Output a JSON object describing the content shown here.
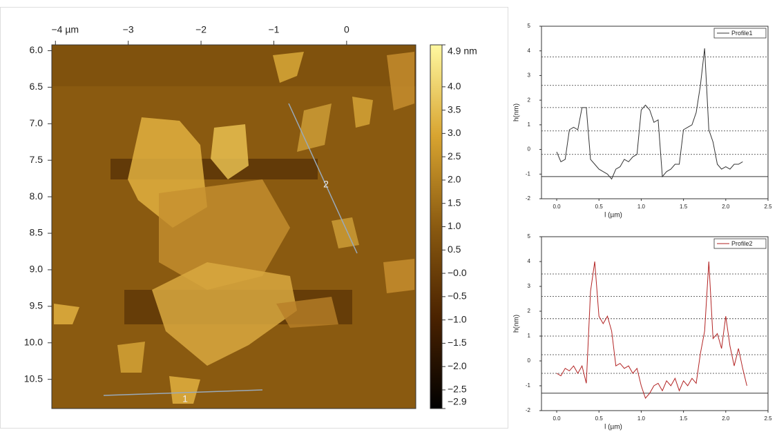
{
  "chart_data": [
    {
      "type": "heatmap",
      "xlim": [
        -4.05,
        0.95
      ],
      "xticks": [
        {
          "value": -4,
          "label": "−4 µm"
        },
        {
          "value": -3,
          "label": "−3"
        },
        {
          "value": -2,
          "label": "−2"
        },
        {
          "value": -1,
          "label": "−1"
        },
        0
      ],
      "ylim": [
        5.92,
        10.9
      ],
      "yticks": [
        {
          "value": 6,
          "label": "6.0"
        },
        6.5,
        {
          "value": 7,
          "label": "7.0"
        },
        7.5,
        {
          "value": 8,
          "label": "8.0"
        },
        8.5,
        {
          "value": 9,
          "label": "9.0"
        },
        9.5,
        {
          "value": 10,
          "label": "10.0"
        },
        10.5
      ],
      "clim": [
        -2.9,
        4.9
      ],
      "cticks": [
        {
          "value": 4.9,
          "label": "4.9 nm"
        },
        {
          "value": 4,
          "label": "4.0"
        },
        3.5,
        {
          "value": 3,
          "label": "3.0"
        },
        2.5,
        {
          "value": 2,
          "label": "2.0"
        },
        1.5,
        {
          "value": 1,
          "label": "1.0"
        },
        0.5,
        {
          "value": 0,
          "label": "−0.0"
        },
        {
          "value": -0.5,
          "label": "−0.5"
        },
        {
          "value": -1,
          "label": "−1.0"
        },
        {
          "value": -1.5,
          "label": "−1.5"
        },
        {
          "value": -2,
          "label": "−2.0"
        },
        {
          "value": -2.5,
          "label": "−2.5"
        },
        {
          "value": -2.9,
          "label": "−2.9"
        }
      ],
      "colormap": [
        "#000000",
        "#4a2200",
        "#8a5a10",
        "#d8a430",
        "#fff8a0"
      ],
      "annotations": [
        "1",
        "2"
      ]
    },
    {
      "type": "line",
      "xlabel": "l (µm)",
      "ylabel": "h(nm)",
      "x": [
        0,
        0.05,
        0.1,
        0.15,
        0.2,
        0.25,
        0.3,
        0.35,
        0.4,
        0.45,
        0.5,
        0.55,
        0.6,
        0.65,
        0.7,
        0.75,
        0.8,
        0.85,
        0.9,
        0.95,
        1,
        1.05,
        1.1,
        1.15,
        1.2,
        1.25,
        1.3,
        1.35,
        1.4,
        1.45,
        1.5,
        1.55,
        1.6,
        1.65,
        1.7,
        1.75,
        1.8,
        1.85,
        1.9,
        1.95,
        2,
        2.05,
        2.1,
        2.15,
        2.2
      ],
      "series": [
        {
          "name": "Profile1",
          "color": "#333333",
          "values": [
            -0.1,
            -0.5,
            -0.4,
            0.8,
            0.9,
            0.8,
            1.7,
            1.7,
            -0.4,
            -0.6,
            -0.8,
            -0.9,
            -1.0,
            -1.2,
            -0.8,
            -0.7,
            -0.4,
            -0.5,
            -0.3,
            -0.2,
            1.6,
            1.8,
            1.6,
            1.1,
            1.2,
            -1.1,
            -0.9,
            -0.8,
            -0.6,
            -0.6,
            0.8,
            0.9,
            1.0,
            1.5,
            2.6,
            4.1,
            0.8,
            0.3,
            -0.6,
            -0.8,
            -0.7,
            -0.8,
            -0.6,
            -0.6,
            -0.5
          ]
        }
      ],
      "xlim": [
        -0.18,
        2.5
      ],
      "xticks": [
        {
          "value": 0,
          "label": "0.0"
        },
        0.5,
        {
          "value": 1,
          "label": "1.0"
        },
        1.5,
        {
          "value": 2,
          "label": "2.0"
        },
        2.5
      ],
      "ylim": [
        -2,
        5
      ],
      "yticks": [
        -2,
        -1,
        0,
        1,
        2,
        3,
        4,
        5
      ],
      "reference_lines": [
        3.75,
        2.6,
        1.7,
        0.75,
        -0.2
      ],
      "baseline": -1.1
    },
    {
      "type": "line",
      "xlabel": "l (µm)",
      "ylabel": "h(nm)",
      "x": [
        0,
        0.05,
        0.1,
        0.15,
        0.2,
        0.25,
        0.3,
        0.35,
        0.4,
        0.45,
        0.5,
        0.55,
        0.6,
        0.65,
        0.7,
        0.75,
        0.8,
        0.85,
        0.9,
        0.95,
        1,
        1.05,
        1.1,
        1.15,
        1.2,
        1.25,
        1.3,
        1.35,
        1.4,
        1.45,
        1.5,
        1.55,
        1.6,
        1.65,
        1.7,
        1.75,
        1.8,
        1.85,
        1.9,
        1.95,
        2,
        2.05,
        2.1,
        2.15,
        2.2,
        2.25
      ],
      "series": [
        {
          "name": "Profile2",
          "color": "#b22222",
          "values": [
            -0.5,
            -0.6,
            -0.3,
            -0.4,
            -0.2,
            -0.5,
            -0.2,
            -0.9,
            2.8,
            4.0,
            1.8,
            1.5,
            1.8,
            1.2,
            -0.2,
            -0.1,
            -0.3,
            -0.2,
            -0.5,
            -0.3,
            -1.0,
            -1.5,
            -1.3,
            -1.0,
            -0.9,
            -1.2,
            -0.8,
            -1.0,
            -0.7,
            -1.2,
            -0.8,
            -1.0,
            -0.7,
            -0.9,
            0.3,
            1.2,
            4.0,
            0.9,
            1.1,
            0.5,
            1.8,
            0.6,
            -0.2,
            0.5,
            -0.3,
            -1.0
          ]
        }
      ],
      "xlim": [
        -0.18,
        2.5
      ],
      "xticks": [
        {
          "value": 0,
          "label": "0.0"
        },
        0.5,
        {
          "value": 1,
          "label": "1.0"
        },
        1.5,
        {
          "value": 2,
          "label": "2.0"
        },
        2.5
      ],
      "ylim": [
        -2,
        5
      ],
      "yticks": [
        -2,
        -1,
        0,
        1,
        2,
        3,
        4,
        5
      ],
      "reference_lines": [
        3.5,
        2.6,
        1.7,
        1.0,
        0.25,
        -0.5
      ],
      "baseline": -1.3
    }
  ]
}
